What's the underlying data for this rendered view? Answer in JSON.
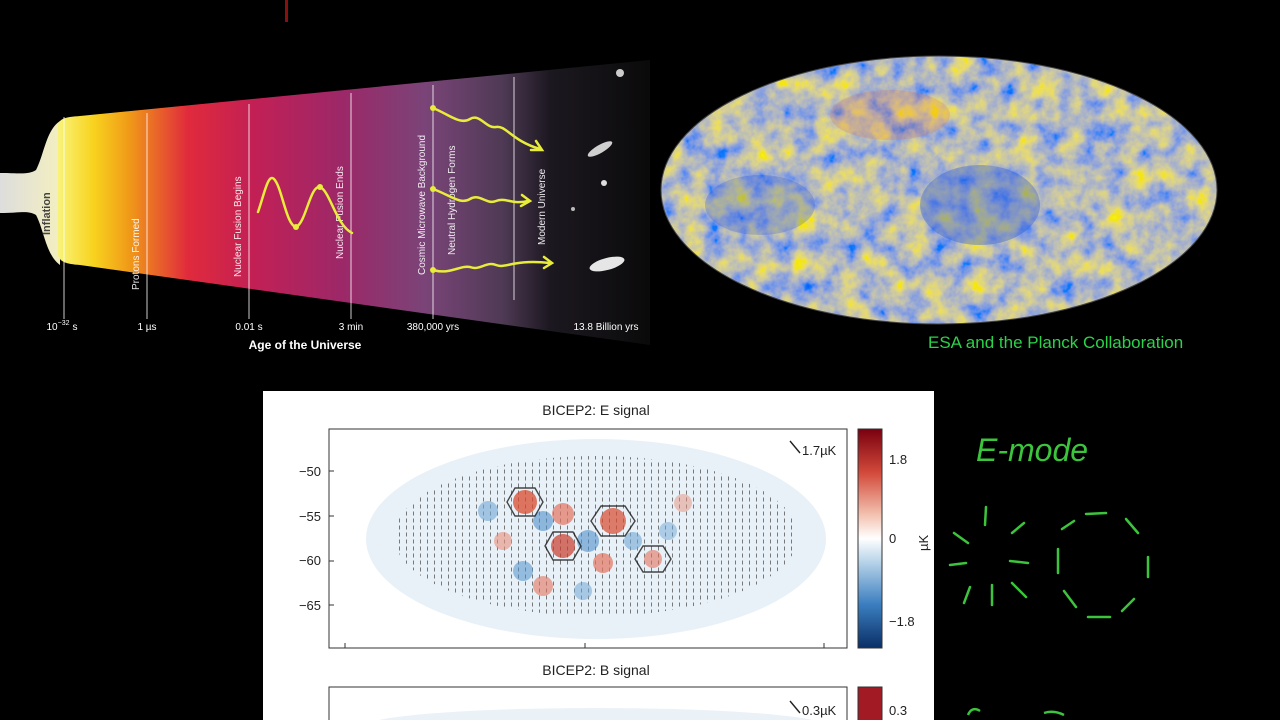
{
  "timeline": {
    "epochs": [
      "Inflation",
      "Protons Formed",
      "Nuclear Fusion Begins",
      "Nuclear Fusion Ends",
      "Cosmic Microwave Background",
      "Neutral Hydrogen Forms",
      "Modern Universe"
    ],
    "ticks": [
      "10",
      "1 µs",
      "0.01 s",
      "3 min",
      "380,000 yrs",
      "13.8 Billion yrs"
    ],
    "first_tick_exponent": "−32",
    "first_tick_unit": "s",
    "axis_label": "Age of the Universe"
  },
  "planck": {
    "credit": "ESA and the Planck Collaboration"
  },
  "bicep": {
    "e_panel": {
      "title": "BICEP2: E signal",
      "y_ticks": [
        "−50",
        "−55",
        "−60",
        "−65"
      ],
      "scale_note": "1.7µK",
      "colorbar_ticks": [
        "1.8",
        "0",
        "−1.8"
      ],
      "colorbar_unit": "µK"
    },
    "b_panel": {
      "title": "BICEP2: B signal",
      "scale_note": "0.3µK",
      "colorbar_top": "0.3"
    }
  },
  "handwriting": {
    "e_mode": "E-mode"
  },
  "colors": {
    "credit_green": "#2bd34a",
    "ink_green": "#3cc43c",
    "arrow_yellow": "#e8ec3a"
  }
}
